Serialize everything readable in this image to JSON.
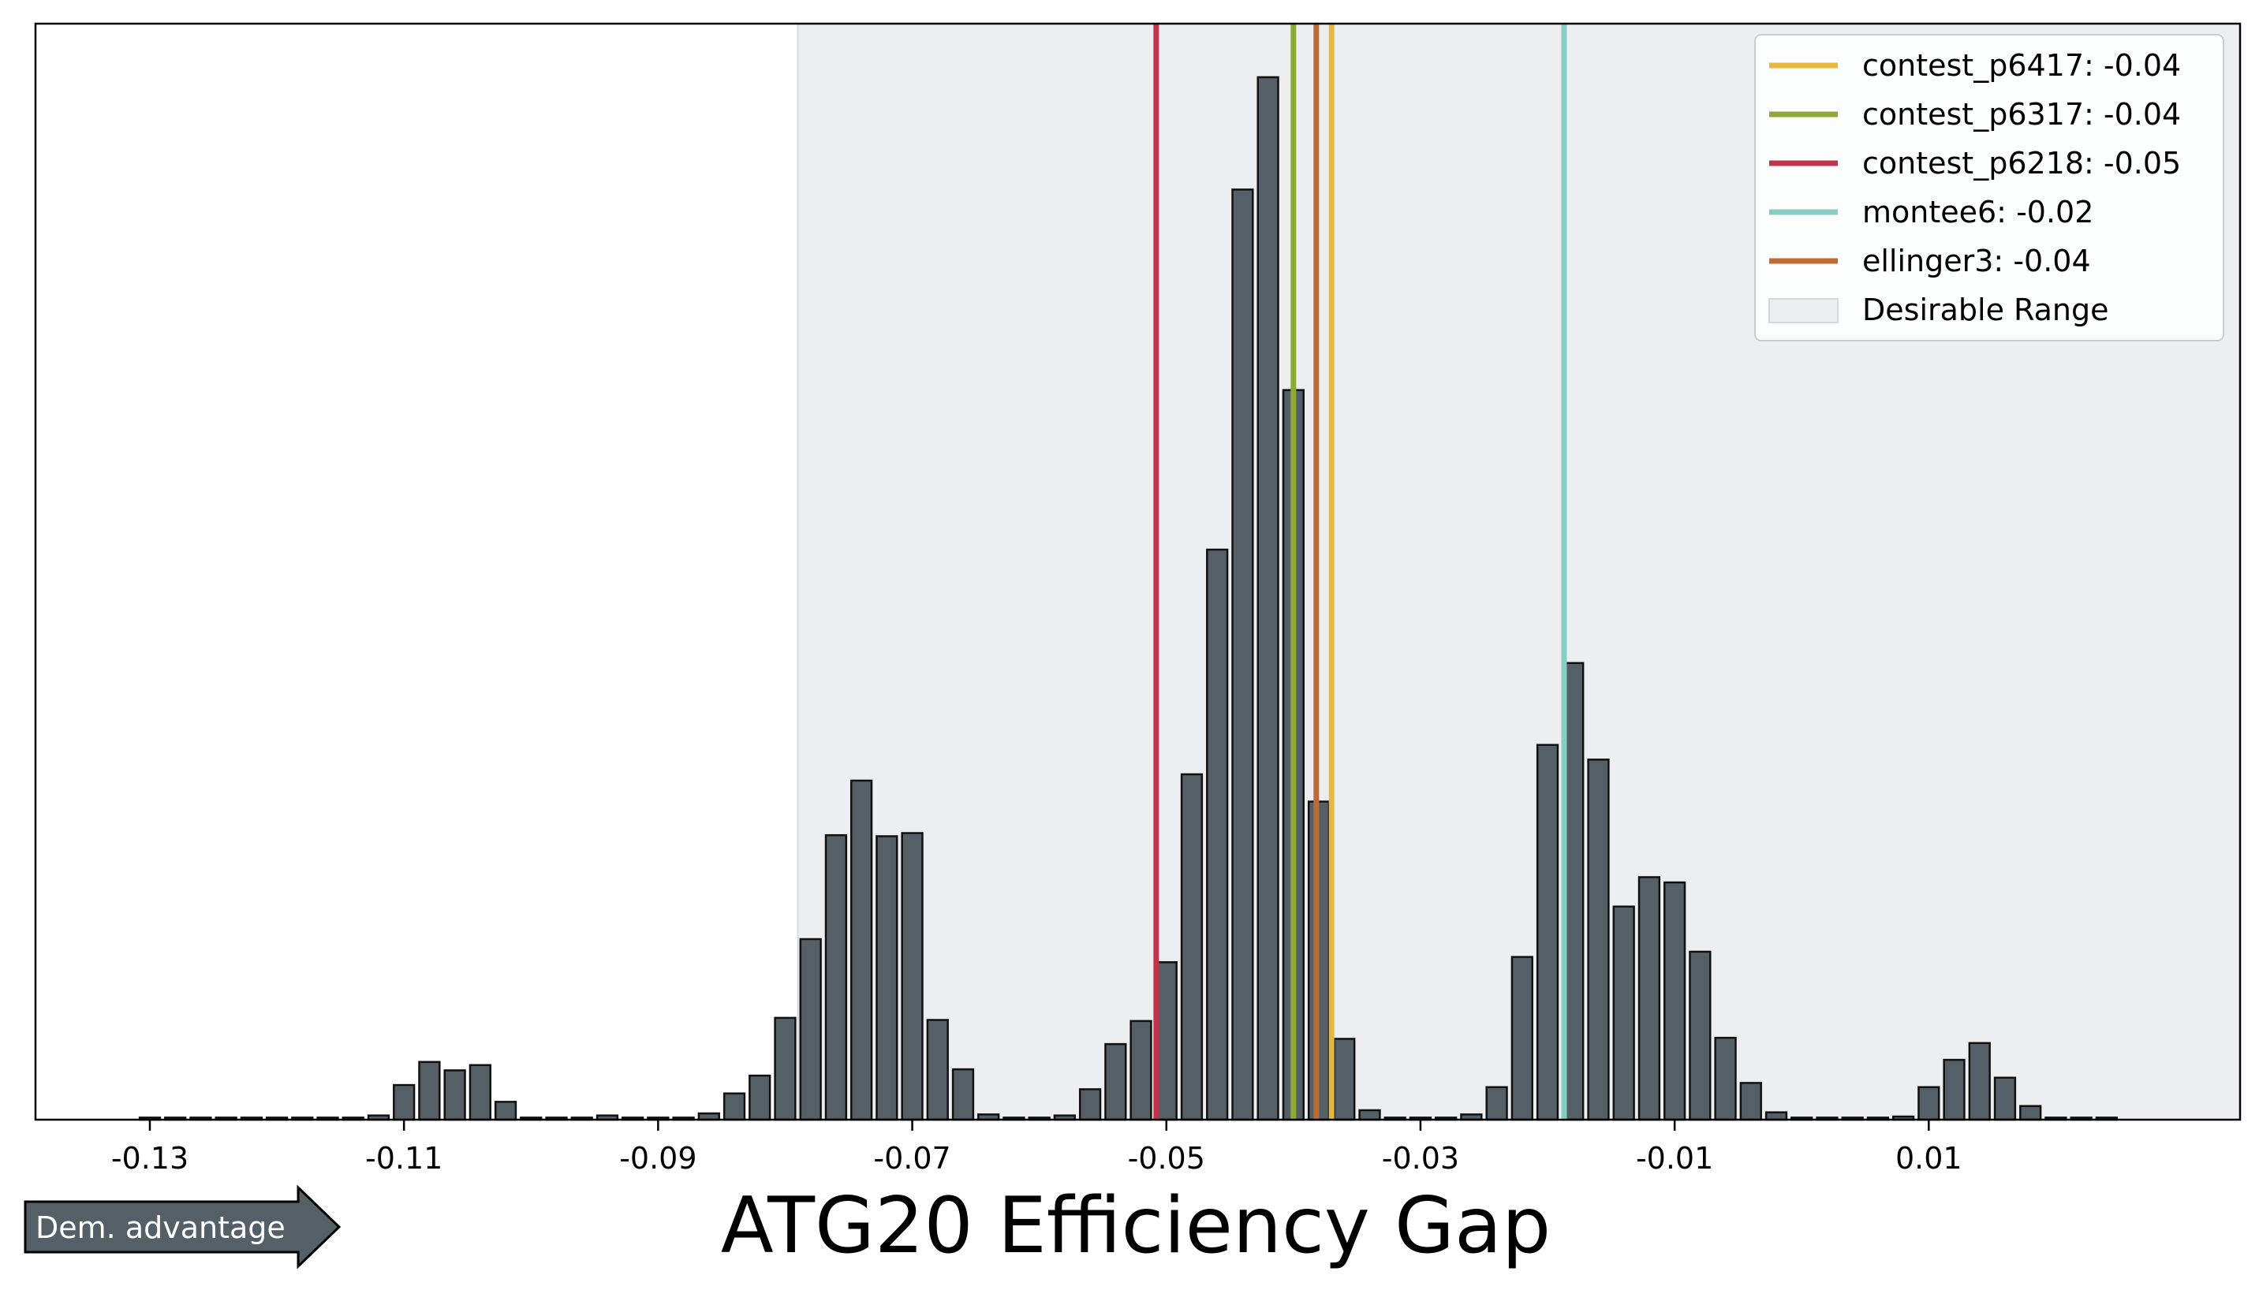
{
  "chart_data": {
    "type": "bar",
    "title": "",
    "xlabel": "ATG20 Efficiency Gap",
    "ylabel": "",
    "xlim": [
      -0.139,
      0.0345
    ],
    "ylim": [
      0,
      1.044
    ],
    "x_ticks": [
      -0.13,
      -0.11,
      -0.09,
      -0.07,
      -0.05,
      -0.03,
      -0.01,
      0.01
    ],
    "x_tick_labels": [
      "-0.13",
      "-0.11",
      "-0.09",
      "-0.07",
      "-0.05",
      "-0.03",
      "-0.01",
      "0.01"
    ],
    "y_ticks_visible": false,
    "grid": false,
    "bar_width": 0.0016,
    "bar_color": "#555f66",
    "bar_edge_color": "#111111",
    "desirable_range": {
      "label": "Desirable Range",
      "x_start": -0.079,
      "x_end": 0.0345,
      "color": "#eceef0"
    },
    "bins": [
      {
        "x": -0.13,
        "h": 0.002
      },
      {
        "x": -0.128,
        "h": 0.002
      },
      {
        "x": -0.126,
        "h": 0.002
      },
      {
        "x": -0.124,
        "h": 0.002
      },
      {
        "x": -0.122,
        "h": 0.002
      },
      {
        "x": -0.12,
        "h": 0.002
      },
      {
        "x": -0.118,
        "h": 0.002
      },
      {
        "x": -0.116,
        "h": 0.002
      },
      {
        "x": -0.114,
        "h": 0.002
      },
      {
        "x": -0.112,
        "h": 0.004
      },
      {
        "x": -0.11,
        "h": 0.033
      },
      {
        "x": -0.108,
        "h": 0.055
      },
      {
        "x": -0.106,
        "h": 0.047
      },
      {
        "x": -0.104,
        "h": 0.052
      },
      {
        "x": -0.102,
        "h": 0.017
      },
      {
        "x": -0.1,
        "h": 0.002
      },
      {
        "x": -0.098,
        "h": 0.002
      },
      {
        "x": -0.096,
        "h": 0.002
      },
      {
        "x": -0.094,
        "h": 0.004
      },
      {
        "x": -0.092,
        "h": 0.002
      },
      {
        "x": -0.09,
        "h": 0.002
      },
      {
        "x": -0.088,
        "h": 0.002
      },
      {
        "x": -0.086,
        "h": 0.006
      },
      {
        "x": -0.084,
        "h": 0.025
      },
      {
        "x": -0.082,
        "h": 0.042
      },
      {
        "x": -0.08,
        "h": 0.097
      },
      {
        "x": -0.078,
        "h": 0.172
      },
      {
        "x": -0.076,
        "h": 0.271
      },
      {
        "x": -0.074,
        "h": 0.323
      },
      {
        "x": -0.072,
        "h": 0.27
      },
      {
        "x": -0.07,
        "h": 0.273
      },
      {
        "x": -0.068,
        "h": 0.095
      },
      {
        "x": -0.066,
        "h": 0.048
      },
      {
        "x": -0.064,
        "h": 0.005
      },
      {
        "x": -0.062,
        "h": 0.002
      },
      {
        "x": -0.06,
        "h": 0.002
      },
      {
        "x": -0.058,
        "h": 0.004
      },
      {
        "x": -0.056,
        "h": 0.029
      },
      {
        "x": -0.054,
        "h": 0.072
      },
      {
        "x": -0.052,
        "h": 0.094
      },
      {
        "x": -0.05,
        "h": 0.15
      },
      {
        "x": -0.048,
        "h": 0.329
      },
      {
        "x": -0.046,
        "h": 0.543
      },
      {
        "x": -0.044,
        "h": 0.886
      },
      {
        "x": -0.042,
        "h": 0.993
      },
      {
        "x": -0.04,
        "h": 0.695
      },
      {
        "x": -0.038,
        "h": 0.303
      },
      {
        "x": -0.036,
        "h": 0.077
      },
      {
        "x": -0.034,
        "h": 0.009
      },
      {
        "x": -0.032,
        "h": 0.002
      },
      {
        "x": -0.03,
        "h": 0.002
      },
      {
        "x": -0.028,
        "h": 0.002
      },
      {
        "x": -0.026,
        "h": 0.005
      },
      {
        "x": -0.024,
        "h": 0.031
      },
      {
        "x": -0.022,
        "h": 0.155
      },
      {
        "x": -0.02,
        "h": 0.357
      },
      {
        "x": -0.018,
        "h": 0.435
      },
      {
        "x": -0.016,
        "h": 0.343
      },
      {
        "x": -0.014,
        "h": 0.203
      },
      {
        "x": -0.012,
        "h": 0.231
      },
      {
        "x": -0.01,
        "h": 0.226
      },
      {
        "x": -0.008,
        "h": 0.16
      },
      {
        "x": -0.006,
        "h": 0.078
      },
      {
        "x": -0.004,
        "h": 0.035
      },
      {
        "x": -0.002,
        "h": 0.007
      },
      {
        "x": 0.0,
        "h": 0.002
      },
      {
        "x": 0.002,
        "h": 0.002
      },
      {
        "x": 0.004,
        "h": 0.002
      },
      {
        "x": 0.006,
        "h": 0.002
      },
      {
        "x": 0.008,
        "h": 0.003
      },
      {
        "x": 0.01,
        "h": 0.031
      },
      {
        "x": 0.012,
        "h": 0.057
      },
      {
        "x": 0.014,
        "h": 0.073
      },
      {
        "x": 0.016,
        "h": 0.04
      },
      {
        "x": 0.018,
        "h": 0.013
      },
      {
        "x": 0.02,
        "h": 0.002
      },
      {
        "x": 0.022,
        "h": 0.002
      },
      {
        "x": 0.024,
        "h": 0.002
      }
    ],
    "reference_lines": [
      {
        "name": "contest_p6417",
        "label": "contest_p6417: -0.04",
        "x": -0.037,
        "color": "#e8b83e"
      },
      {
        "name": "contest_p6317",
        "label": "contest_p6317: -0.04",
        "x": -0.04,
        "color": "#8ea936"
      },
      {
        "name": "contest_p6218",
        "label": "contest_p6218: -0.05",
        "x": -0.0508,
        "color": "#c0334a"
      },
      {
        "name": "montee6",
        "label": "montee6: -0.02",
        "x": -0.0187,
        "color": "#86cdc3"
      },
      {
        "name": "ellinger3",
        "label": "ellinger3: -0.04",
        "x": -0.0382,
        "color": "#bf6a30"
      }
    ],
    "legend": {
      "placement": "top-right"
    },
    "direction_marker": {
      "label": "Dem. advantage",
      "direction": "right",
      "color": "#555f66"
    }
  }
}
